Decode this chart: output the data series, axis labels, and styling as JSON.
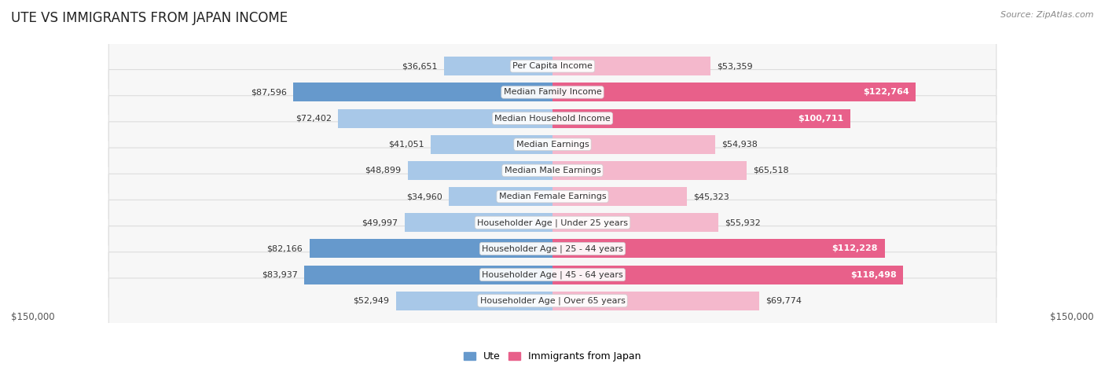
{
  "title": "UTE VS IMMIGRANTS FROM JAPAN INCOME",
  "source": "Source: ZipAtlas.com",
  "categories": [
    "Per Capita Income",
    "Median Family Income",
    "Median Household Income",
    "Median Earnings",
    "Median Male Earnings",
    "Median Female Earnings",
    "Householder Age | Under 25 years",
    "Householder Age | 25 - 44 years",
    "Householder Age | 45 - 64 years",
    "Householder Age | Over 65 years"
  ],
  "ute_values": [
    36651,
    87596,
    72402,
    41051,
    48899,
    34960,
    49997,
    82166,
    83937,
    52949
  ],
  "japan_values": [
    53359,
    122764,
    100711,
    54938,
    65518,
    45323,
    55932,
    112228,
    118498,
    69774
  ],
  "ute_labels": [
    "$36,651",
    "$87,596",
    "$72,402",
    "$41,051",
    "$48,899",
    "$34,960",
    "$49,997",
    "$82,166",
    "$83,937",
    "$52,949"
  ],
  "japan_labels": [
    "$53,359",
    "$122,764",
    "$100,711",
    "$54,938",
    "$65,518",
    "$45,323",
    "$55,932",
    "$112,228",
    "$118,498",
    "$69,774"
  ],
  "ute_color_light": "#a8c8e8",
  "ute_color_dark": "#6699cc",
  "japan_color_light": "#f4b8cc",
  "japan_color_dark": "#e8608a",
  "max_value": 150000,
  "bg_color": "#ffffff",
  "row_bg_light": "#f7f7f7",
  "row_border": "#dddddd",
  "legend_ute": "Ute",
  "legend_japan": "Immigrants from Japan",
  "axis_label_left": "$150,000",
  "axis_label_right": "$150,000",
  "japan_large_threshold": 100000,
  "ute_large_threshold": 80000
}
